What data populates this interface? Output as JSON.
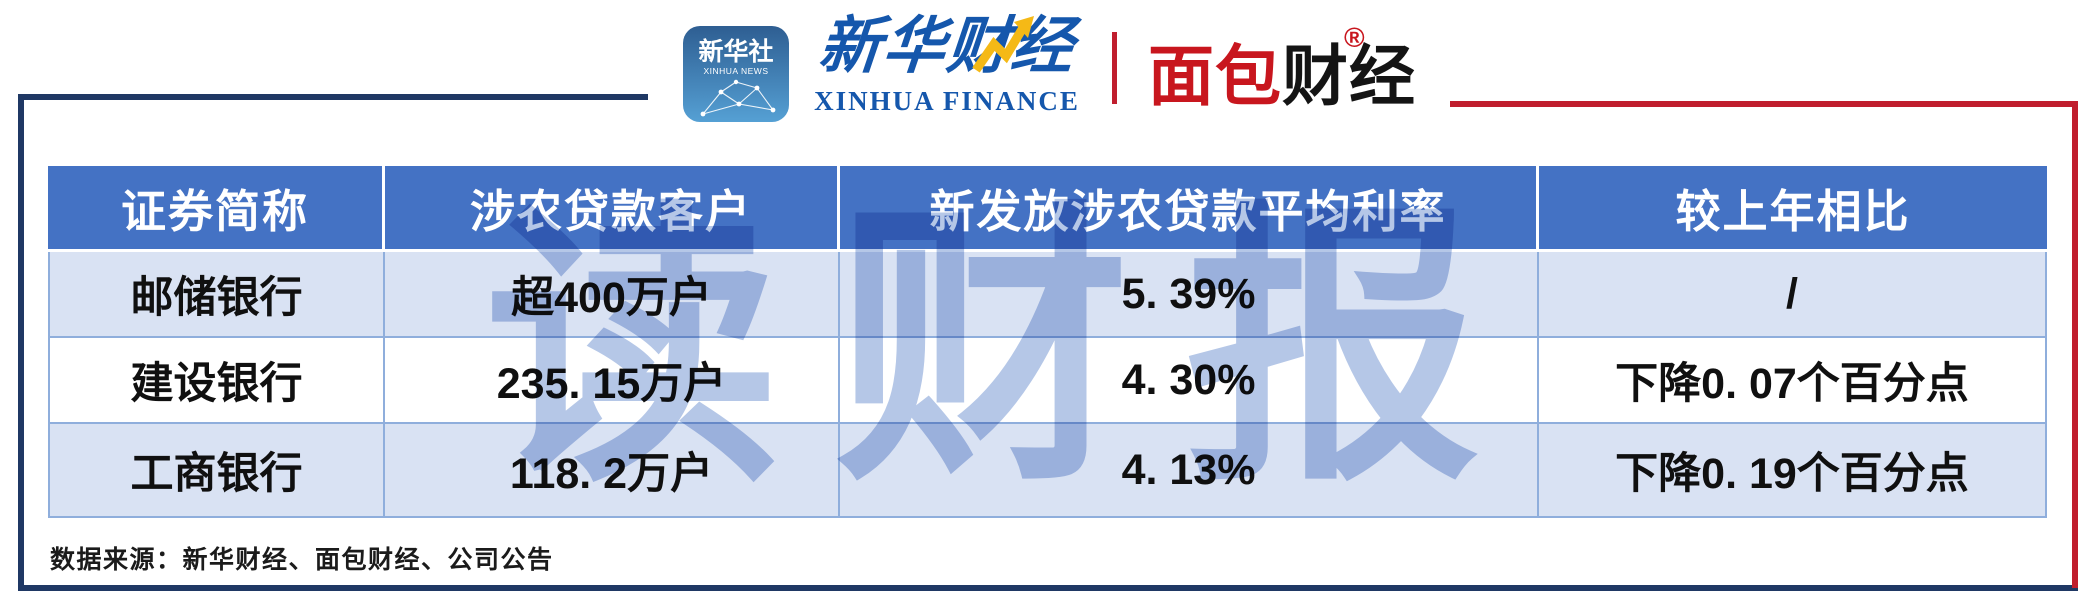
{
  "brand": {
    "xinhua_news_icon": {
      "line1": "新华社",
      "line2": "XINHUA NEWS"
    },
    "xinhua_finance": {
      "cn": "新华财经",
      "en": "XINHUA FINANCE"
    },
    "mianbao": {
      "cn_red": "面包",
      "cn_black": "财经",
      "reg_mark": "®"
    }
  },
  "watermark": "读财报",
  "chart_data": {
    "type": "table",
    "title": "",
    "columns": [
      "证券简称",
      "涉农贷款客户",
      "新发放涉农贷款平均利率",
      "较上年相比"
    ],
    "display_rows": [
      [
        "邮储银行",
        "超400万户",
        "5. 39%",
        "/"
      ],
      [
        "建设银行",
        "235. 15万户",
        "4. 30%",
        "下降0. 07个百分点"
      ],
      [
        "工商银行",
        "118. 2万户",
        "4. 13%",
        "下降0. 19个百分点"
      ]
    ],
    "numeric": {
      "banks": [
        "邮储银行",
        "建设银行",
        "工商银行"
      ],
      "agri_loan_customers_wan": [
        400,
        235.15,
        118.2
      ],
      "avg_new_agri_loan_rate_pct": [
        5.39,
        4.3,
        4.13
      ],
      "change_vs_prev_year_pct_points": [
        null,
        -0.07,
        -0.19
      ]
    }
  },
  "source": "数据来源：新华财经、面包财经、公司公告",
  "colors": {
    "header_bg": "#4472C4",
    "row_alt_bg": "#D9E2F3",
    "cell_border": "#8FAEDC",
    "frame_navy": "#1F3864",
    "frame_red": "#C01E2E",
    "brand_red": "#C8161E",
    "brand_blue": "#1557AC",
    "watermark": "#B5C7E7",
    "arrow_yellow": "#F5B916"
  }
}
